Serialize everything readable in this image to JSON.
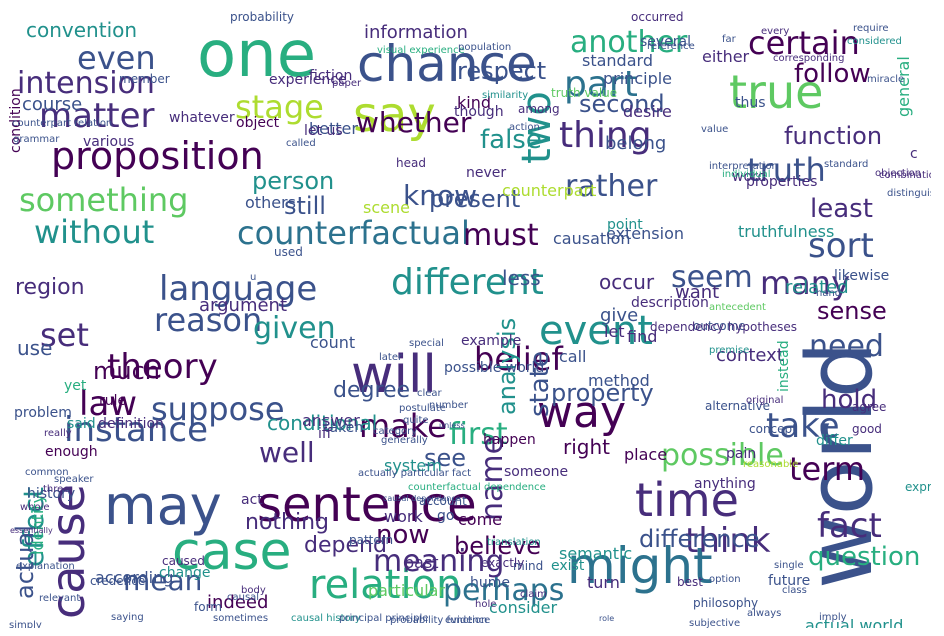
{
  "palette": {
    "background": "#ffffff",
    "colors": [
      "#440154",
      "#472d7b",
      "#3b528b",
      "#2c728e",
      "#21918c",
      "#28ae80",
      "#5ec962",
      "#addc30",
      "#fde725"
    ]
  },
  "words": [
    {
      "text": "world",
      "color": "#3b528b"
    },
    {
      "text": "one",
      "color": "#28ae80"
    },
    {
      "text": "may",
      "color": "#3b528b"
    },
    {
      "text": "might",
      "color": "#2c728e"
    },
    {
      "text": "chance",
      "color": "#3b528b"
    },
    {
      "text": "sentence",
      "color": "#440154"
    },
    {
      "text": "case",
      "color": "#28ae80"
    },
    {
      "text": "time",
      "color": "#472d7b"
    },
    {
      "text": "will",
      "color": "#472d7b"
    },
    {
      "text": "way",
      "color": "#440154"
    },
    {
      "text": "say",
      "color": "#addc30"
    },
    {
      "text": "true",
      "color": "#5ec962"
    },
    {
      "text": "event",
      "color": "#21918c"
    },
    {
      "text": "proposition",
      "color": "#440154"
    },
    {
      "text": "counterfactual",
      "color": "#2c728e"
    },
    {
      "text": "language",
      "color": "#3b528b"
    },
    {
      "text": "thing",
      "color": "#472d7b"
    },
    {
      "text": "different",
      "color": "#21918c"
    },
    {
      "text": "part",
      "color": "#2c728e"
    },
    {
      "text": "cause",
      "color": "#472d7b"
    },
    {
      "text": "two",
      "color": "#21918c"
    },
    {
      "text": "relation",
      "color": "#28ae80"
    },
    {
      "text": "instance",
      "color": "#3b528b"
    },
    {
      "text": "something",
      "color": "#5ec962"
    },
    {
      "text": "matter",
      "color": "#472d7b"
    },
    {
      "text": "theory",
      "color": "#440154"
    },
    {
      "text": "meaning",
      "color": "#472d7b"
    },
    {
      "text": "perhaps",
      "color": "#2c728e"
    },
    {
      "text": "think",
      "color": "#472d7b"
    },
    {
      "text": "without",
      "color": "#21918c"
    },
    {
      "text": "certain",
      "color": "#440154"
    },
    {
      "text": "another",
      "color": "#28ae80"
    },
    {
      "text": "even",
      "color": "#3b528b"
    },
    {
      "text": "stage",
      "color": "#addc30"
    },
    {
      "text": "intension",
      "color": "#472d7b"
    },
    {
      "text": "whether",
      "color": "#440154"
    },
    {
      "text": "know",
      "color": "#3b528b"
    },
    {
      "text": "rather",
      "color": "#3b528b"
    },
    {
      "text": "truth",
      "color": "#3b528b"
    },
    {
      "text": "must",
      "color": "#440154"
    },
    {
      "text": "reason",
      "color": "#3b528b"
    },
    {
      "text": "suppose",
      "color": "#3b528b"
    },
    {
      "text": "law",
      "color": "#440154"
    },
    {
      "text": "make",
      "color": "#440154"
    },
    {
      "text": "belief",
      "color": "#440154"
    },
    {
      "text": "take",
      "color": "#3b528b"
    },
    {
      "text": "term",
      "color": "#440154"
    },
    {
      "text": "fact",
      "color": "#472d7b"
    },
    {
      "text": "first",
      "color": "#28ae80"
    },
    {
      "text": "name",
      "color": "#472d7b"
    },
    {
      "text": "state",
      "color": "#3b528b"
    },
    {
      "text": "analysis",
      "color": "#21918c"
    },
    {
      "text": "sort",
      "color": "#3b528b"
    },
    {
      "text": "many",
      "color": "#472d7b"
    },
    {
      "text": "seem",
      "color": "#3b528b"
    },
    {
      "text": "given",
      "color": "#21918c"
    },
    {
      "text": "set",
      "color": "#472d7b"
    },
    {
      "text": "possible",
      "color": "#5ec962"
    },
    {
      "text": "effect",
      "color": "#21918c"
    },
    {
      "text": "mean",
      "color": "#3b528b"
    },
    {
      "text": "question",
      "color": "#28ae80"
    },
    {
      "text": "need",
      "color": "#3b528b"
    },
    {
      "text": "well",
      "color": "#472d7b"
    },
    {
      "text": "person",
      "color": "#21918c"
    },
    {
      "text": "respect",
      "color": "#3b528b"
    },
    {
      "text": "function",
      "color": "#472d7b"
    },
    {
      "text": "follow",
      "color": "#440154"
    },
    {
      "text": "second",
      "color": "#3b528b"
    },
    {
      "text": "false",
      "color": "#21918c"
    },
    {
      "text": "present",
      "color": "#3b528b"
    },
    {
      "text": "least",
      "color": "#472d7b"
    },
    {
      "text": "still",
      "color": "#3b528b"
    },
    {
      "text": "now",
      "color": "#440154"
    },
    {
      "text": "actual",
      "color": "#3b528b"
    },
    {
      "text": "much",
      "color": "#440154"
    },
    {
      "text": "see",
      "color": "#3b528b"
    },
    {
      "text": "hold",
      "color": "#472d7b"
    },
    {
      "text": "depend",
      "color": "#472d7b"
    },
    {
      "text": "difference",
      "color": "#3b528b"
    },
    {
      "text": "believe",
      "color": "#440154"
    },
    {
      "text": "property",
      "color": "#3b528b"
    },
    {
      "text": "sense",
      "color": "#440154"
    },
    {
      "text": "nothing",
      "color": "#472d7b"
    },
    {
      "text": "region",
      "color": "#472d7b"
    },
    {
      "text": "degree",
      "color": "#3b528b"
    },
    {
      "text": "convention",
      "color": "#21918c"
    },
    {
      "text": "less",
      "color": "#3b528b"
    },
    {
      "text": "occur",
      "color": "#472d7b"
    },
    {
      "text": "argument",
      "color": "#472d7b"
    },
    {
      "text": "conditional",
      "color": "#21918c"
    },
    {
      "text": "want",
      "color": "#472d7b"
    },
    {
      "text": "right",
      "color": "#440154"
    },
    {
      "text": "identity",
      "color": "#28ae80"
    },
    {
      "text": "history",
      "color": "#3b528b"
    },
    {
      "text": "use",
      "color": "#3b528b"
    },
    {
      "text": "course",
      "color": "#3b528b"
    },
    {
      "text": "information",
      "color": "#472d7b"
    },
    {
      "text": "standard",
      "color": "#3b528b"
    },
    {
      "text": "principle",
      "color": "#3b528b"
    },
    {
      "text": "either",
      "color": "#472d7b"
    },
    {
      "text": "general",
      "color": "#28ae80"
    },
    {
      "text": "particular",
      "color": "#5ec962"
    },
    {
      "text": "turn",
      "color": "#472d7b"
    },
    {
      "text": "semantic",
      "color": "#21918c"
    },
    {
      "text": "consider",
      "color": "#21918c"
    },
    {
      "text": "exist",
      "color": "#21918c"
    },
    {
      "text": "actual world",
      "color": "#21918c"
    },
    {
      "text": "future",
      "color": "#3b528b"
    },
    {
      "text": "come",
      "color": "#440154"
    },
    {
      "text": "work",
      "color": "#472d7b"
    },
    {
      "text": "indeed",
      "color": "#440154"
    },
    {
      "text": "according",
      "color": "#3b528b"
    },
    {
      "text": "change",
      "color": "#21918c"
    },
    {
      "text": "past",
      "color": "#472d7b"
    },
    {
      "text": "go",
      "color": "#3b528b"
    },
    {
      "text": "system",
      "color": "#21918c"
    },
    {
      "text": "act",
      "color": "#472d7b"
    },
    {
      "text": "place",
      "color": "#440154"
    },
    {
      "text": "give",
      "color": "#3b528b"
    },
    {
      "text": "let",
      "color": "#472d7b"
    },
    {
      "text": "call",
      "color": "#3b528b"
    },
    {
      "text": "find",
      "color": "#472d7b"
    },
    {
      "text": "method",
      "color": "#3b528b"
    },
    {
      "text": "context",
      "color": "#472d7b"
    },
    {
      "text": "related",
      "color": "#21918c"
    },
    {
      "text": "likewise",
      "color": "#3b528b"
    },
    {
      "text": "description",
      "color": "#472d7b"
    },
    {
      "text": "causation",
      "color": "#3b528b"
    },
    {
      "text": "extension",
      "color": "#3b528b"
    },
    {
      "text": "point",
      "color": "#21918c"
    },
    {
      "text": "word",
      "color": "#472d7b"
    },
    {
      "text": "properties",
      "color": "#472d7b"
    },
    {
      "text": "others",
      "color": "#3b528b"
    },
    {
      "text": "scene",
      "color": "#addc30"
    },
    {
      "text": "belong",
      "color": "#3b528b"
    },
    {
      "text": "counterpart",
      "color": "#addc30"
    },
    {
      "text": "kind",
      "color": "#440154"
    },
    {
      "text": "though",
      "color": "#472d7b"
    },
    {
      "text": "desire",
      "color": "#472d7b"
    },
    {
      "text": "thus",
      "color": "#3b528b"
    },
    {
      "text": "never",
      "color": "#472d7b"
    },
    {
      "text": "better",
      "color": "#3b528b"
    },
    {
      "text": "let us",
      "color": "#472d7b"
    },
    {
      "text": "object",
      "color": "#440154"
    },
    {
      "text": "whatever",
      "color": "#472d7b"
    },
    {
      "text": "various",
      "color": "#472d7b"
    },
    {
      "text": "condition",
      "color": "#440154"
    },
    {
      "text": "experience",
      "color": "#472d7b"
    },
    {
      "text": "fiction",
      "color": "#472d7b"
    },
    {
      "text": "count",
      "color": "#3b528b"
    },
    {
      "text": "possible world",
      "color": "#3b528b"
    },
    {
      "text": "example",
      "color": "#472d7b"
    },
    {
      "text": "answer",
      "color": "#472d7b"
    },
    {
      "text": "happen",
      "color": "#440154"
    },
    {
      "text": "yet",
      "color": "#28ae80"
    },
    {
      "text": "problem",
      "color": "#3b528b"
    },
    {
      "text": "rule",
      "color": "#440154"
    },
    {
      "text": "definition",
      "color": "#472d7b"
    },
    {
      "text": "enough",
      "color": "#440154"
    },
    {
      "text": "said",
      "color": "#21918c"
    },
    {
      "text": "taken",
      "color": "#3b528b"
    },
    {
      "text": "someone",
      "color": "#472d7b"
    },
    {
      "text": "pain",
      "color": "#472d7b"
    },
    {
      "text": "anything",
      "color": "#472d7b"
    },
    {
      "text": "hume",
      "color": "#3b528b"
    },
    {
      "text": "truthfulness",
      "color": "#21918c"
    },
    {
      "text": "c",
      "color": "#472d7b"
    },
    {
      "text": "iff",
      "color": "#472d7b"
    },
    {
      "text": "used",
      "color": "#3b528b"
    },
    {
      "text": "several",
      "color": "#3b528b"
    },
    {
      "text": "occurred",
      "color": "#472d7b"
    },
    {
      "text": "probability",
      "color": "#3b528b"
    },
    {
      "text": "visual experience",
      "color": "#28ae80"
    },
    {
      "text": "population",
      "color": "#3b528b"
    },
    {
      "text": "paper",
      "color": "#472d7b"
    },
    {
      "text": "member",
      "color": "#3b528b"
    },
    {
      "text": "truth value",
      "color": "#5ec962"
    },
    {
      "text": "similarity",
      "color": "#21918c"
    },
    {
      "text": "among",
      "color": "#472d7b"
    },
    {
      "text": "action",
      "color": "#3b528b"
    },
    {
      "text": "head",
      "color": "#472d7b"
    },
    {
      "text": "called",
      "color": "#3b528b"
    },
    {
      "text": "value",
      "color": "#3b528b"
    },
    {
      "text": "instead",
      "color": "#28ae80"
    },
    {
      "text": "alternative",
      "color": "#3b528b"
    },
    {
      "text": "concept",
      "color": "#3b528b"
    },
    {
      "text": "agree",
      "color": "#472d7b"
    },
    {
      "text": "good",
      "color": "#472d7b"
    },
    {
      "text": "differ",
      "color": "#21918c"
    },
    {
      "text": "expression",
      "color": "#21918c"
    },
    {
      "text": "best",
      "color": "#472d7b"
    },
    {
      "text": "philosophy",
      "color": "#3b528b"
    },
    {
      "text": "mind",
      "color": "#3b528b"
    },
    {
      "text": "translation",
      "color": "#21918c"
    },
    {
      "text": "account",
      "color": "#3b528b"
    },
    {
      "text": "pattern",
      "color": "#3b528b"
    },
    {
      "text": "hole",
      "color": "#472d7b"
    },
    {
      "text": "claim",
      "color": "#472d7b"
    },
    {
      "text": "exactly",
      "color": "#472d7b"
    },
    {
      "text": "really",
      "color": "#472d7b"
    },
    {
      "text": "common",
      "color": "#3b528b"
    },
    {
      "text": "speaker",
      "color": "#3b528b"
    },
    {
      "text": "three",
      "color": "#472d7b"
    },
    {
      "text": "credence",
      "color": "#3b528b"
    },
    {
      "text": "caused",
      "color": "#472d7b"
    },
    {
      "text": "causal",
      "color": "#3b528b"
    },
    {
      "text": "body",
      "color": "#472d7b"
    },
    {
      "text": "form",
      "color": "#3b528b"
    },
    {
      "text": "whole",
      "color": "#472d7b"
    },
    {
      "text": "u",
      "color": "#3b528b"
    },
    {
      "text": "grammar",
      "color": "#3b528b"
    },
    {
      "text": "counterpart relation",
      "color": "#3b528b"
    },
    {
      "text": "antecedent",
      "color": "#5ec962"
    },
    {
      "text": "premise",
      "color": "#21918c"
    },
    {
      "text": "outcome",
      "color": "#3b528b"
    },
    {
      "text": "hand",
      "color": "#3b528b"
    },
    {
      "text": "every",
      "color": "#472d7b"
    },
    {
      "text": "far",
      "color": "#3b528b"
    },
    {
      "text": "considered",
      "color": "#21918c"
    },
    {
      "text": "require",
      "color": "#3b528b"
    },
    {
      "text": "corresponding",
      "color": "#472d7b"
    },
    {
      "text": "miracle",
      "color": "#3b528b"
    },
    {
      "text": "original",
      "color": "#472d7b"
    },
    {
      "text": "reasonable",
      "color": "#addc30"
    },
    {
      "text": "special",
      "color": "#3b528b"
    },
    {
      "text": "later",
      "color": "#3b528b"
    },
    {
      "text": "simply",
      "color": "#3b528b"
    },
    {
      "text": "saying",
      "color": "#3b528b"
    },
    {
      "text": "sometimes",
      "color": "#3b528b"
    },
    {
      "text": "causal history",
      "color": "#21918c"
    },
    {
      "text": "principal principle",
      "color": "#3b528b"
    },
    {
      "text": "probability function",
      "color": "#3b528b"
    },
    {
      "text": "evidence",
      "color": "#3b528b"
    },
    {
      "text": "dependency hypotheses",
      "color": "#472d7b"
    },
    {
      "text": "reference",
      "color": "#3b528b"
    },
    {
      "text": "individual",
      "color": "#28ae80"
    },
    {
      "text": "standard",
      "color": "#3b528b"
    },
    {
      "text": "objection",
      "color": "#472d7b"
    },
    {
      "text": "combination",
      "color": "#472d7b"
    },
    {
      "text": "distinguish",
      "color": "#3b528b"
    },
    {
      "text": "interpretation",
      "color": "#3b528b"
    },
    {
      "text": "postulate",
      "color": "#3b528b"
    },
    {
      "text": "clear",
      "color": "#3b528b"
    },
    {
      "text": "quite",
      "color": "#3b528b"
    },
    {
      "text": "number",
      "color": "#3b528b"
    },
    {
      "text": "category",
      "color": "#3b528b"
    },
    {
      "text": "generally",
      "color": "#3b528b"
    },
    {
      "text": "relevant",
      "color": "#3b528b"
    },
    {
      "text": "explanation",
      "color": "#3b528b"
    },
    {
      "text": "essentially",
      "color": "#472d7b"
    },
    {
      "text": "actually particular fact",
      "color": "#3b528b"
    },
    {
      "text": "counterfactual dependence",
      "color": "#28ae80"
    },
    {
      "text": "causal dependence",
      "color": "#3b528b"
    },
    {
      "text": "unless",
      "color": "#3b528b"
    },
    {
      "text": "subjective",
      "color": "#3b528b"
    },
    {
      "text": "always",
      "color": "#3b528b"
    },
    {
      "text": "little",
      "color": "#472d7b"
    },
    {
      "text": "class",
      "color": "#3b528b"
    },
    {
      "text": "imply",
      "color": "#3b528b"
    },
    {
      "text": "single",
      "color": "#3b528b"
    },
    {
      "text": "option",
      "color": "#3b528b"
    },
    {
      "text": "role",
      "color": "#3b528b"
    },
    {
      "text": "already",
      "color": "#472d7b"
    },
    {
      "text": "yield",
      "color": "#3b528b"
    }
  ]
}
